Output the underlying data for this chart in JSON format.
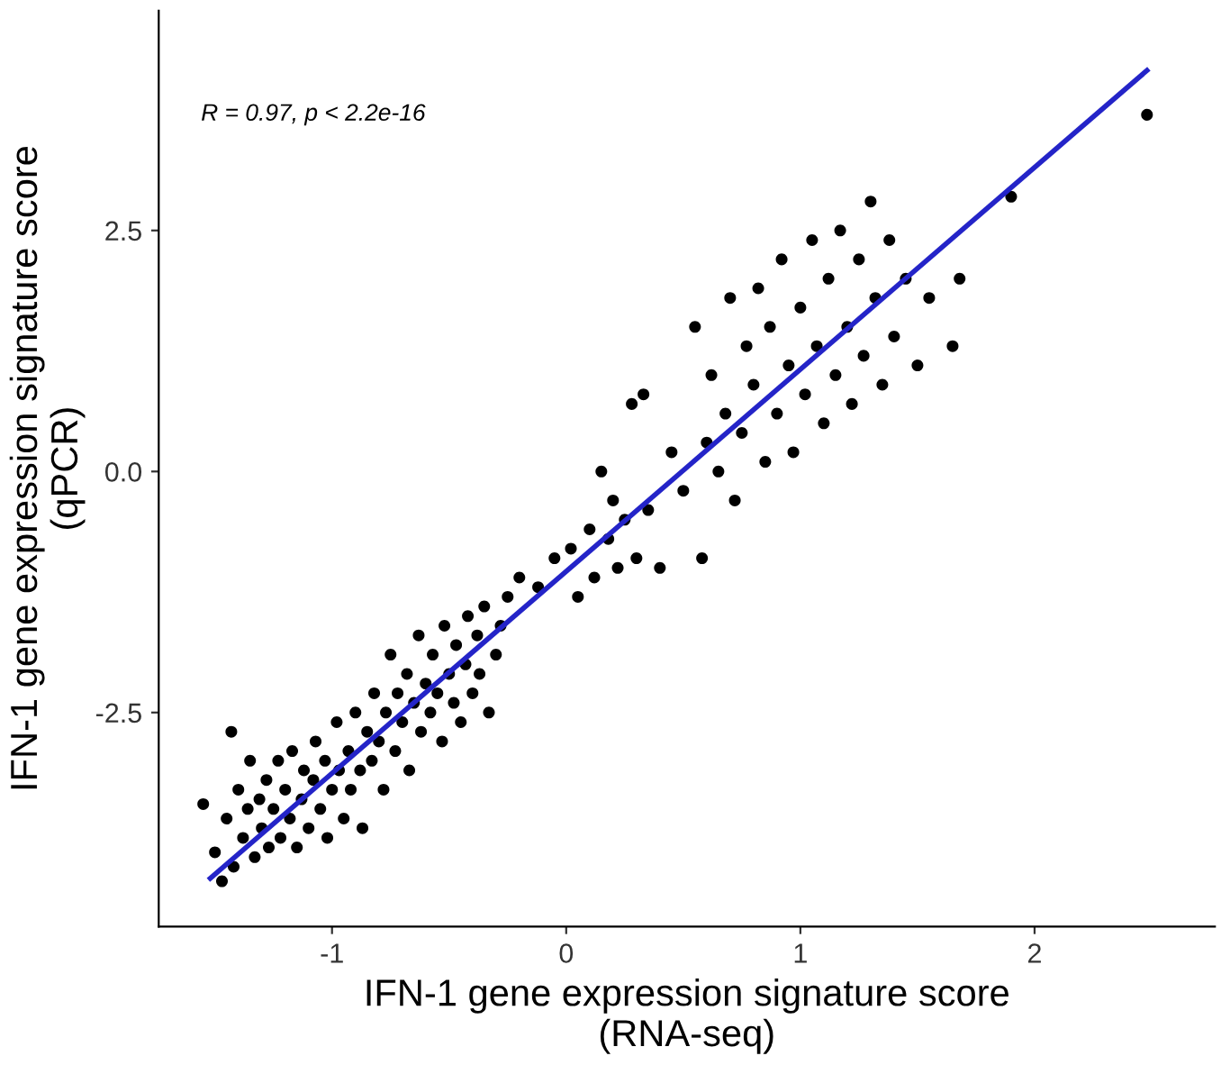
{
  "chart_data": {
    "type": "scatter",
    "xlabel": "IFN-1 gene expression signature score\n(RNA-seq)",
    "ylabel": "IFN-1 gene expression signature score\n(qPCR)",
    "annotations": [
      "R = 0.97, p < 2.2e-16"
    ],
    "xlim": [
      -1.74,
      2.77
    ],
    "ylim": [
      -4.72,
      4.78
    ],
    "xticks": [
      -1,
      0,
      1,
      2
    ],
    "yticks": [
      {
        "value": -2.5,
        "label": "-2.5"
      },
      {
        "value": 0,
        "label": "0.0"
      },
      {
        "value": 2.5,
        "label": "2.5"
      }
    ],
    "grid": false,
    "legend": false,
    "series": [
      {
        "color": "#000000",
        "marker": "circle",
        "x": [
          -1.55,
          -1.5,
          -1.47,
          -1.45,
          -1.43,
          -1.42,
          -1.4,
          -1.38,
          -1.36,
          -1.35,
          -1.33,
          -1.31,
          -1.3,
          -1.28,
          -1.27,
          -1.25,
          -1.23,
          -1.22,
          -1.2,
          -1.18,
          -1.17,
          -1.15,
          -1.13,
          -1.12,
          -1.1,
          -1.08,
          -1.07,
          -1.05,
          -1.03,
          -1.02,
          -1.0,
          -0.98,
          -0.97,
          -0.95,
          -0.93,
          -0.92,
          -0.9,
          -0.88,
          -0.87,
          -0.85,
          -0.83,
          -0.82,
          -0.8,
          -0.78,
          -0.77,
          -0.75,
          -0.73,
          -0.72,
          -0.7,
          -0.68,
          -0.67,
          -0.65,
          -0.63,
          -0.62,
          -0.6,
          -0.58,
          -0.57,
          -0.55,
          -0.53,
          -0.52,
          -0.5,
          -0.48,
          -0.47,
          -0.45,
          -0.43,
          -0.42,
          -0.4,
          -0.38,
          -0.37,
          -0.35,
          -0.33,
          -0.3,
          -0.28,
          -0.25,
          -0.2,
          -0.12,
          -0.05,
          0.02,
          0.05,
          0.1,
          0.12,
          0.15,
          0.18,
          0.2,
          0.22,
          0.25,
          0.28,
          0.3,
          0.33,
          0.35,
          0.4,
          0.45,
          0.5,
          0.55,
          0.58,
          0.6,
          0.62,
          0.65,
          0.68,
          0.7,
          0.72,
          0.75,
          0.77,
          0.8,
          0.82,
          0.85,
          0.87,
          0.9,
          0.92,
          0.95,
          0.97,
          1.0,
          1.02,
          1.05,
          1.07,
          1.1,
          1.12,
          1.15,
          1.17,
          1.2,
          1.22,
          1.25,
          1.27,
          1.3,
          1.32,
          1.35,
          1.38,
          1.4,
          1.45,
          1.5,
          1.55,
          1.65,
          1.68,
          1.9,
          2.48
        ],
        "values": [
          -3.45,
          -3.95,
          -4.25,
          -3.6,
          -2.7,
          -4.1,
          -3.3,
          -3.8,
          -3.5,
          -3.0,
          -4.0,
          -3.4,
          -3.7,
          -3.2,
          -3.9,
          -3.5,
          -3.0,
          -3.8,
          -3.3,
          -3.6,
          -2.9,
          -3.9,
          -3.4,
          -3.1,
          -3.7,
          -3.2,
          -2.8,
          -3.5,
          -3.0,
          -3.8,
          -3.3,
          -2.6,
          -3.1,
          -3.6,
          -2.9,
          -3.3,
          -2.5,
          -3.1,
          -3.7,
          -2.7,
          -3.0,
          -2.3,
          -2.8,
          -3.3,
          -2.5,
          -1.9,
          -2.9,
          -2.3,
          -2.6,
          -2.1,
          -3.1,
          -2.4,
          -1.7,
          -2.7,
          -2.2,
          -2.5,
          -1.9,
          -2.3,
          -2.8,
          -1.6,
          -2.1,
          -2.4,
          -1.8,
          -2.6,
          -2.0,
          -1.5,
          -2.3,
          -1.7,
          -2.1,
          -1.4,
          -2.5,
          -1.9,
          -1.6,
          -1.3,
          -1.1,
          -1.2,
          -0.9,
          -0.8,
          -1.3,
          -0.6,
          -1.1,
          0.0,
          -0.7,
          -0.3,
          -1.0,
          -0.5,
          0.7,
          -0.9,
          0.8,
          -0.4,
          -1.0,
          0.2,
          -0.2,
          1.5,
          -0.9,
          0.3,
          1.0,
          0.0,
          0.6,
          1.8,
          -0.3,
          0.4,
          1.3,
          0.9,
          1.9,
          0.1,
          1.5,
          0.6,
          2.2,
          1.1,
          0.2,
          1.7,
          0.8,
          2.4,
          1.3,
          0.5,
          2.0,
          1.0,
          2.5,
          1.5,
          0.7,
          2.2,
          1.2,
          2.8,
          1.8,
          0.9,
          2.4,
          1.4,
          2.0,
          1.1,
          1.8,
          1.3,
          2.0,
          2.85,
          3.7
        ]
      },
      {
        "type": "line",
        "color": "#2424c8",
        "marker": "none",
        "line_style": "solid",
        "x": [
          -1.52,
          2.48
        ],
        "values": [
          -4.22,
          4.16
        ]
      }
    ]
  }
}
